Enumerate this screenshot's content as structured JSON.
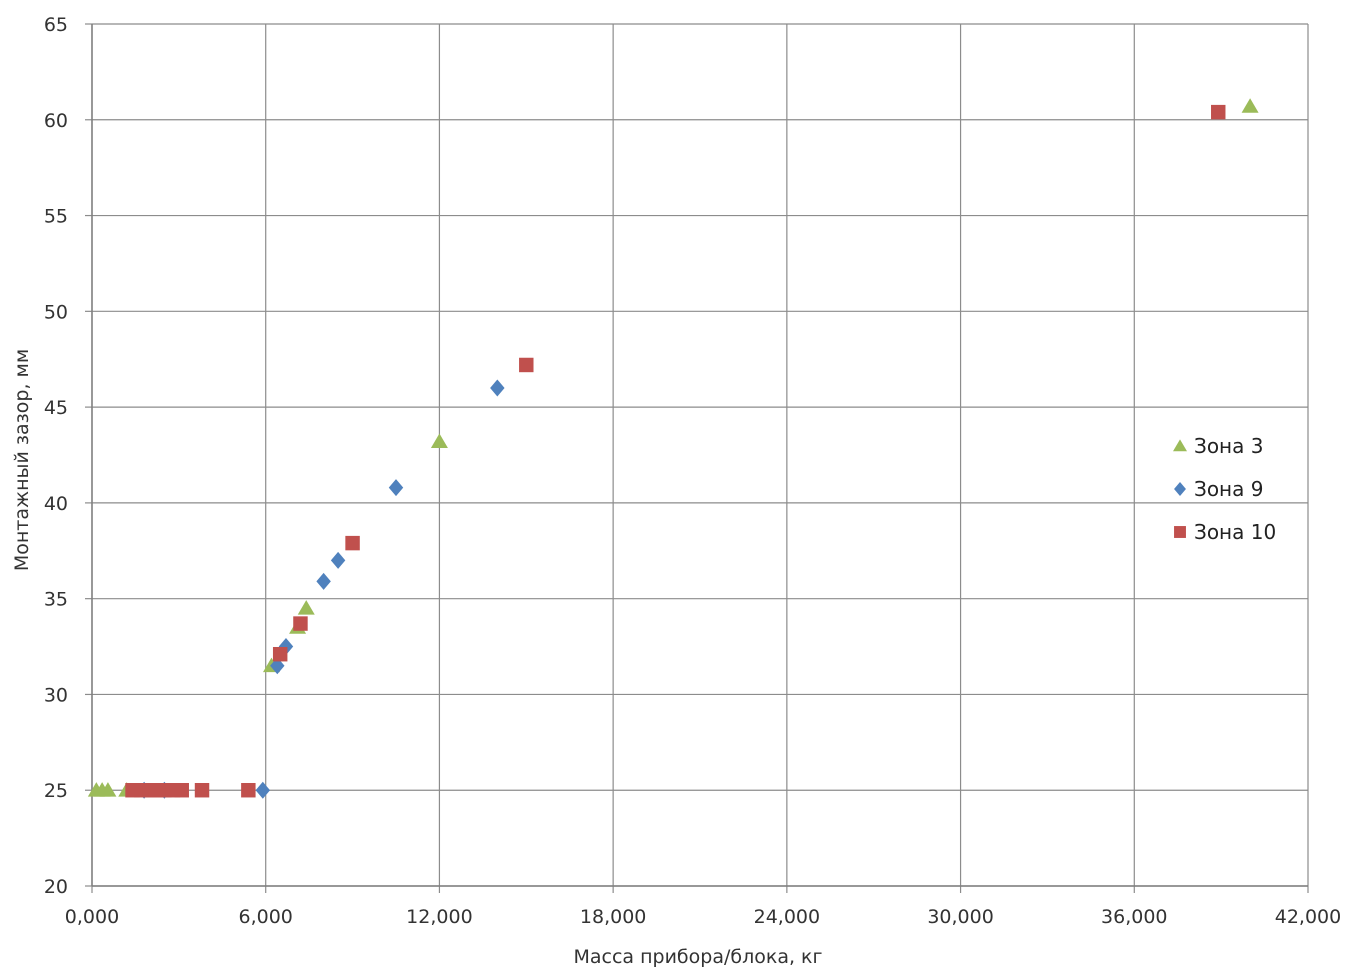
{
  "chart_data": {
    "type": "scatter",
    "title": "",
    "xlabel": "Масса прибора/блока, кг",
    "ylabel": "Монтажный зазор, мм",
    "xlim": [
      0,
      42000
    ],
    "ylim": [
      20,
      65
    ],
    "x_ticks": [
      0,
      6000,
      12000,
      18000,
      24000,
      30000,
      36000,
      42000
    ],
    "x_tick_labels": [
      "0,000",
      "6,000",
      "12,000",
      "18,000",
      "24,000",
      "30,000",
      "36,000",
      "42,000"
    ],
    "y_ticks": [
      20,
      25,
      30,
      35,
      40,
      45,
      50,
      55,
      60,
      65
    ],
    "y_tick_labels": [
      "20",
      "25",
      "30",
      "35",
      "40",
      "45",
      "50",
      "55",
      "60",
      "65"
    ],
    "grid": true,
    "legend_position": "right",
    "series": [
      {
        "name": "Зона 3",
        "marker": "triangle",
        "color": "#9BBB59",
        "points": [
          {
            "x": 150,
            "y": 25
          },
          {
            "x": 350,
            "y": 25
          },
          {
            "x": 550,
            "y": 25
          },
          {
            "x": 1200,
            "y": 25
          },
          {
            "x": 6200,
            "y": 31.5
          },
          {
            "x": 7100,
            "y": 33.5
          },
          {
            "x": 7400,
            "y": 34.5
          },
          {
            "x": 12000,
            "y": 43.2
          },
          {
            "x": 40000,
            "y": 60.7
          }
        ]
      },
      {
        "name": "Зона 9",
        "marker": "diamond",
        "color": "#4F81BD",
        "points": [
          {
            "x": 1800,
            "y": 25
          },
          {
            "x": 2500,
            "y": 25
          },
          {
            "x": 5900,
            "y": 25
          },
          {
            "x": 6400,
            "y": 31.5
          },
          {
            "x": 6700,
            "y": 32.5
          },
          {
            "x": 8000,
            "y": 35.9
          },
          {
            "x": 8500,
            "y": 37
          },
          {
            "x": 10500,
            "y": 40.8
          },
          {
            "x": 14000,
            "y": 46
          }
        ]
      },
      {
        "name": "Зона 10",
        "marker": "square",
        "color": "#C0504D",
        "points": [
          {
            "x": 1400,
            "y": 25
          },
          {
            "x": 1700,
            "y": 25
          },
          {
            "x": 2000,
            "y": 25
          },
          {
            "x": 2200,
            "y": 25
          },
          {
            "x": 2500,
            "y": 25
          },
          {
            "x": 2800,
            "y": 25
          },
          {
            "x": 3100,
            "y": 25
          },
          {
            "x": 3800,
            "y": 25
          },
          {
            "x": 5400,
            "y": 25
          },
          {
            "x": 6500,
            "y": 32.1
          },
          {
            "x": 7200,
            "y": 33.7
          },
          {
            "x": 9000,
            "y": 37.9
          },
          {
            "x": 15000,
            "y": 47.2
          },
          {
            "x": 38900,
            "y": 60.4
          }
        ]
      }
    ]
  }
}
